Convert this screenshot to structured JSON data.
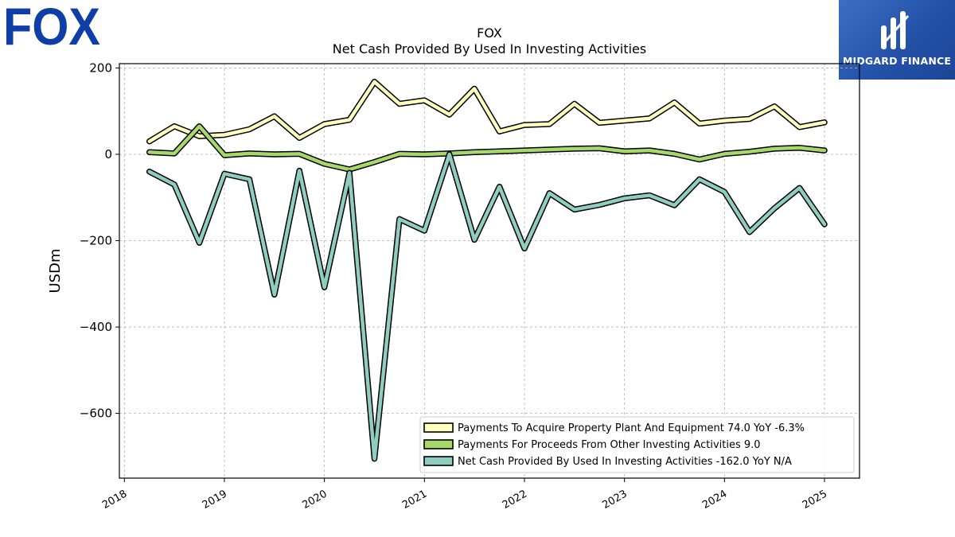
{
  "brand": {
    "left_logo": "FOX",
    "right_logo": "MIDGARD FINANCE"
  },
  "chart_data": {
    "type": "line",
    "title": "FOX",
    "subtitle": "Net Cash Provided By Used In Investing Activities",
    "xlabel": "",
    "ylabel": "USDm",
    "xlim": [
      2017.95,
      2025.35
    ],
    "ylim": [
      -750,
      210
    ],
    "x_ticks": [
      2018,
      2019,
      2020,
      2021,
      2022,
      2023,
      2024,
      2025
    ],
    "x_tick_labels": [
      "2018",
      "2019",
      "2020",
      "2021",
      "2022",
      "2023",
      "2024",
      "2025"
    ],
    "y_ticks": [
      200,
      0,
      -200,
      -400,
      -600
    ],
    "y_tick_labels": [
      "200",
      "0",
      "−200",
      "−400",
      "−600"
    ],
    "grid": true,
    "legend_position": "lower-right",
    "x": [
      2018.25,
      2018.5,
      2018.75,
      2019.0,
      2019.25,
      2019.5,
      2019.75,
      2020.0,
      2020.25,
      2020.5,
      2020.75,
      2021.0,
      2021.25,
      2021.5,
      2021.75,
      2022.0,
      2022.25,
      2022.5,
      2022.75,
      2023.0,
      2023.25,
      2023.5,
      2023.75,
      2024.0,
      2024.25,
      2024.5,
      2024.75,
      2025.0
    ],
    "series": [
      {
        "name": "Payments To Acquire Property Plant And Equipment",
        "legend_label": "Payments To Acquire Property Plant And Equipment  74.0 YoY -6.3%",
        "color": "#ffffbf",
        "values": [
          30,
          65,
          42,
          45,
          58,
          88,
          38,
          70,
          80,
          168,
          117,
          125,
          92,
          152,
          53,
          68,
          70,
          117,
          73,
          78,
          83,
          120,
          71,
          78,
          82,
          111,
          63,
          74
        ]
      },
      {
        "name": "Payments For Proceeds From Other Investing Activities",
        "legend_label": "Payments For Proceeds From Other Investing Activities  9.0",
        "color": "#a6d96a",
        "values": [
          5,
          2,
          65,
          -2,
          2,
          0,
          1,
          -22,
          -35,
          -18,
          1,
          0,
          2,
          5,
          7,
          9,
          11,
          13,
          14,
          7,
          9,
          1,
          -12,
          1,
          6,
          13,
          15,
          9
        ]
      },
      {
        "name": "Net Cash Provided By Used In Investing Activities",
        "legend_label": "Net Cash Provided By Used In Investing Activities  -162.0 YoY N/A",
        "color": "#8ecdc0",
        "values": [
          -40,
          -70,
          -205,
          -45,
          -58,
          -325,
          -38,
          -308,
          -43,
          -705,
          -150,
          -177,
          0,
          -198,
          -75,
          -218,
          -90,
          -128,
          -117,
          -102,
          -95,
          -118,
          -58,
          -87,
          -180,
          -125,
          -78,
          -162
        ]
      }
    ]
  }
}
